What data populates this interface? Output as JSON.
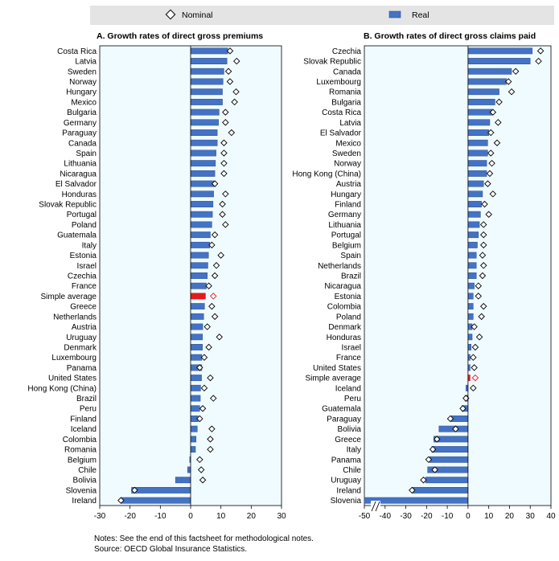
{
  "legend": {
    "nominal_label": "Nominal",
    "real_label": "Real"
  },
  "colors": {
    "real_bar": "#4472C4",
    "real_bar_border": "#2F4F8F",
    "average_bar": "#E31A1C",
    "panel_bg": "#F0FBFF",
    "legend_bg": "#E4E4E4"
  },
  "notes": {
    "line1": "Notes: See the end of this factsheet for methodological notes.",
    "line2": "Source: OECD Global Insurance Statistics."
  },
  "chart_data": [
    {
      "type": "bar",
      "orientation": "horizontal",
      "title": "A. Growth rates of direct gross premiums",
      "xlim": [
        -30,
        30
      ],
      "xticks": [
        -30,
        -20,
        -10,
        0,
        10,
        20,
        30
      ],
      "highlight": "Simple average",
      "categories": [
        "Costa Rica",
        "Latvia",
        "Sweden",
        "Norway",
        "Hungary",
        "Mexico",
        "Bulgaria",
        "Germany",
        "Paraguay",
        "Canada",
        "Spain",
        "Lithuania",
        "Nicaragua",
        "El Salvador",
        "Honduras",
        "Slovak Republic",
        "Portugal",
        "Poland",
        "Guatemala",
        "Italy",
        "Estonia",
        "Israel",
        "Czechia",
        "France",
        "Simple average",
        "Greece",
        "Netherlands",
        "Austria",
        "Uruguay",
        "Denmark",
        "Luxembourg",
        "Panama",
        "United States",
        "Hong Kong (China)",
        "Brazil",
        "Peru",
        "Finland",
        "Iceland",
        "Colombia",
        "Romania",
        "Belgium",
        "Chile",
        "Bolivia",
        "Slovenia",
        "Ireland"
      ],
      "series": [
        {
          "name": "Real",
          "values": [
            12.3,
            12.0,
            11.0,
            10.7,
            10.5,
            10.5,
            9.4,
            9.2,
            8.8,
            8.8,
            8.4,
            8.2,
            8.0,
            7.7,
            7.6,
            7.4,
            7.2,
            7.0,
            6.5,
            6.3,
            5.9,
            5.7,
            5.5,
            5.2,
            4.9,
            4.6,
            4.3,
            4.0,
            3.9,
            3.9,
            3.7,
            3.7,
            3.6,
            3.3,
            3.2,
            3.0,
            2.5,
            2.2,
            1.8,
            1.6,
            -0.3,
            -1.0,
            -5.0,
            -19.5,
            -23.0
          ]
        },
        {
          "name": "Nominal",
          "values": [
            13.0,
            15.2,
            12.5,
            13.0,
            15.0,
            14.5,
            11.5,
            11.5,
            13.5,
            11.0,
            11.0,
            11.0,
            11.0,
            8.0,
            11.5,
            10.5,
            10.5,
            11.5,
            8.0,
            7.0,
            10.0,
            8.5,
            8.0,
            6.0,
            7.5,
            7.0,
            8.0,
            5.5,
            9.5,
            6.0,
            4.5,
            3.0,
            6.5,
            4.5,
            7.5,
            4.0,
            3.0,
            7.0,
            6.5,
            6.5,
            3.0,
            3.5,
            4.0,
            -18.5,
            -23.0
          ]
        }
      ]
    },
    {
      "type": "bar",
      "orientation": "horizontal",
      "title": "B. Growth rates of direct gross claims paid",
      "xlim": [
        -50,
        40
      ],
      "xticks": [
        -50,
        -40,
        -30,
        -20,
        -10,
        0,
        10,
        20,
        30,
        40
      ],
      "axis_break": true,
      "highlight": "Simple average",
      "categories": [
        "Czechia",
        "Slovak Republic",
        "Canada",
        "Luxembourg",
        "Romania",
        "Bulgaria",
        "Costa Rica",
        "Latvia",
        "El Salvador",
        "Mexico",
        "Sweden",
        "Norway",
        "Hong Kong (China)",
        "Austria",
        "Hungary",
        "Finland",
        "Germany",
        "Lithuania",
        "Portugal",
        "Belgium",
        "Spain",
        "Netherlands",
        "Brazil",
        "Nicaragua",
        "Estonia",
        "Colombia",
        "Poland",
        "Denmark",
        "Honduras",
        "Israel",
        "France",
        "United States",
        "Simple average",
        "Iceland",
        "Peru",
        "Guatemala",
        "Paraguay",
        "Bolivia",
        "Greece",
        "Italy",
        "Panama",
        "Chile",
        "Uruguay",
        "Ireland",
        "Slovenia"
      ],
      "series": [
        {
          "name": "Real",
          "values": [
            31.0,
            30.0,
            21.0,
            18.5,
            15.0,
            13.0,
            11.5,
            10.5,
            10.0,
            9.5,
            9.5,
            9.0,
            9.0,
            7.5,
            7.0,
            6.5,
            6.0,
            5.5,
            5.0,
            4.5,
            4.0,
            4.0,
            4.0,
            3.0,
            2.5,
            2.5,
            2.5,
            2.0,
            2.0,
            1.5,
            1.0,
            1.0,
            1.0,
            -1.0,
            -1.5,
            -3.0,
            -8.0,
            -14.0,
            -16.5,
            -17.5,
            -18.5,
            -19.5,
            -20.5,
            -27.0,
            -50.0
          ]
        },
        {
          "name": "Nominal",
          "values": [
            35.0,
            34.0,
            23.0,
            19.5,
            21.0,
            15.0,
            12.0,
            14.5,
            11.0,
            14.0,
            11.0,
            11.5,
            10.5,
            9.5,
            12.0,
            8.0,
            10.0,
            7.5,
            7.5,
            7.5,
            7.0,
            7.5,
            7.0,
            5.0,
            5.0,
            7.5,
            6.5,
            3.0,
            5.5,
            3.5,
            2.5,
            3.0,
            3.5,
            2.5,
            -1.0,
            -2.5,
            -8.5,
            -6.0,
            -15.0,
            -17.0,
            -19.0,
            -16.0,
            -21.5,
            -27.0,
            null
          ]
        }
      ]
    }
  ]
}
